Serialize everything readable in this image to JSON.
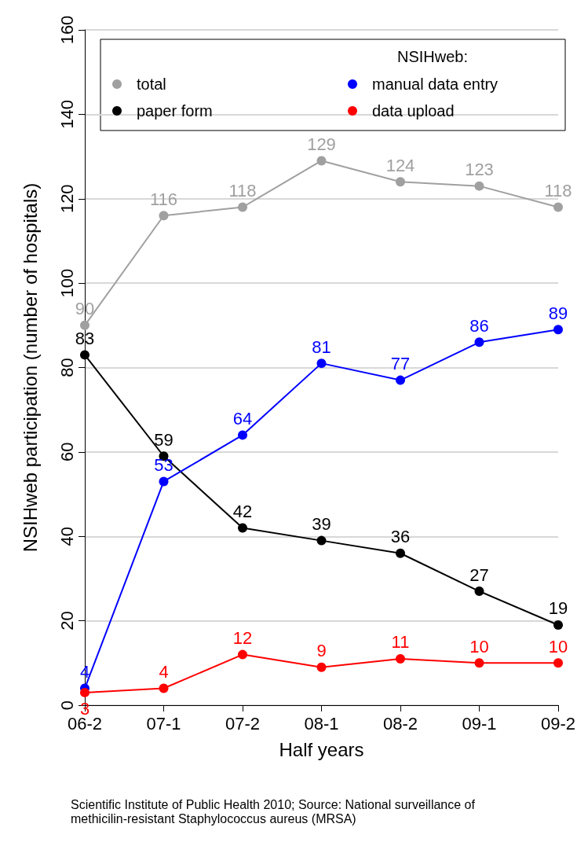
{
  "chart_data": {
    "type": "line",
    "xlabel": "Half years",
    "ylabel": "NSIHweb participation (number of hospitals)",
    "legend_title": "NSIHweb:",
    "categories": [
      "06-2",
      "07-1",
      "07-2",
      "08-1",
      "08-2",
      "09-1",
      "09-2"
    ],
    "series": [
      {
        "name": "total",
        "color": "#a0a0a0",
        "values": [
          90,
          116,
          118,
          129,
          124,
          123,
          118
        ]
      },
      {
        "name": "paper form",
        "color": "#000000",
        "values": [
          83,
          59,
          42,
          39,
          36,
          27,
          19
        ]
      },
      {
        "name": "manual data entry",
        "color": "#0000ff",
        "values": [
          4,
          53,
          64,
          81,
          77,
          86,
          89
        ]
      },
      {
        "name": "data upload",
        "color": "#ff0000",
        "values": [
          3,
          4,
          12,
          9,
          11,
          10,
          10
        ]
      }
    ],
    "ylim": [
      0,
      160
    ],
    "yticks": [
      0,
      20,
      40,
      60,
      80,
      100,
      120,
      140,
      160
    ],
    "grid": "y",
    "legend": "top",
    "marker": "circle",
    "line_style": "solid",
    "data_labels": true,
    "annotations": [
      "Scientific Institute of Public Health 2010; Source: National surveillance of methicilin-resistant Staphylococcus aureus (MRSA)"
    ]
  }
}
